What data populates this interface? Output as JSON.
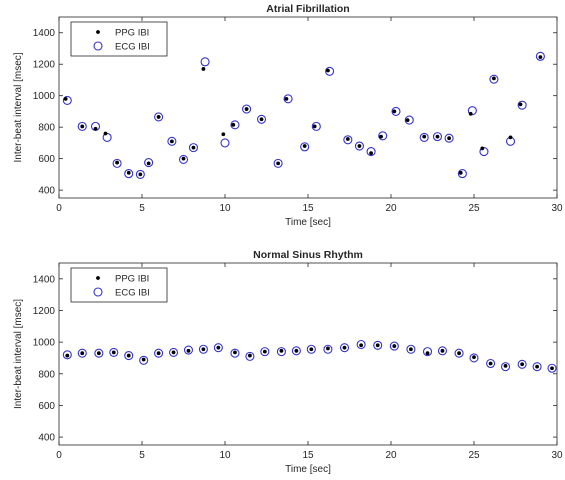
{
  "chart_data": [
    {
      "type": "scatter",
      "title": "Atrial Fibrillation",
      "xlabel": "Time [sec]",
      "ylabel": "Inter-beat interval [msec]",
      "xlim": [
        0,
        30
      ],
      "ylim": [
        350,
        1500
      ],
      "xticks": [
        "0",
        "5",
        "10",
        "15",
        "20",
        "25",
        "30"
      ],
      "yticks": [
        "400",
        "600",
        "800",
        "1000",
        "1200",
        "1400"
      ],
      "xtick_values": [
        0,
        5,
        10,
        15,
        20,
        25,
        30
      ],
      "ytick_values": [
        400,
        600,
        800,
        1000,
        1200,
        1400
      ],
      "legend": {
        "position": "top-left",
        "entries": [
          "PPG IBI",
          "ECG IBI"
        ]
      },
      "grid": false,
      "series": [
        {
          "name": "PPG IBI",
          "marker": "dot",
          "color": "#000000",
          "points": [
            [
              0.4,
              980
            ],
            [
              1.4,
              805
            ],
            [
              2.2,
              790
            ],
            [
              2.8,
              760
            ],
            [
              3.5,
              575
            ],
            [
              4.2,
              510
            ],
            [
              4.9,
              500
            ],
            [
              5.4,
              570
            ],
            [
              6.0,
              865
            ],
            [
              6.8,
              710
            ],
            [
              7.5,
              600
            ],
            [
              8.1,
              670
            ],
            [
              8.7,
              1170
            ],
            [
              9.9,
              755
            ],
            [
              10.5,
              815
            ],
            [
              11.3,
              915
            ],
            [
              12.2,
              850
            ],
            [
              13.2,
              570
            ],
            [
              13.7,
              980
            ],
            [
              14.8,
              680
            ],
            [
              15.4,
              805
            ],
            [
              16.2,
              1160
            ],
            [
              17.4,
              725
            ],
            [
              18.1,
              680
            ],
            [
              18.8,
              635
            ],
            [
              19.4,
              740
            ],
            [
              20.2,
              900
            ],
            [
              21.0,
              845
            ],
            [
              22.0,
              740
            ],
            [
              22.8,
              740
            ],
            [
              23.5,
              730
            ],
            [
              24.2,
              510
            ],
            [
              24.8,
              885
            ],
            [
              25.5,
              665
            ],
            [
              26.2,
              1110
            ],
            [
              27.2,
              735
            ],
            [
              27.8,
              945
            ],
            [
              29.0,
              1245
            ]
          ]
        },
        {
          "name": "ECG IBI",
          "marker": "open-circle",
          "color": "#3333cc",
          "points": [
            [
              0.5,
              970
            ],
            [
              1.4,
              805
            ],
            [
              2.2,
              805
            ],
            [
              2.9,
              735
            ],
            [
              3.5,
              570
            ],
            [
              4.2,
              505
            ],
            [
              4.9,
              500
            ],
            [
              5.4,
              575
            ],
            [
              6.0,
              865
            ],
            [
              6.8,
              710
            ],
            [
              7.5,
              595
            ],
            [
              8.1,
              670
            ],
            [
              8.8,
              1215
            ],
            [
              10.0,
              700
            ],
            [
              10.6,
              815
            ],
            [
              11.3,
              915
            ],
            [
              12.2,
              850
            ],
            [
              13.2,
              570
            ],
            [
              13.8,
              980
            ],
            [
              14.8,
              675
            ],
            [
              15.5,
              805
            ],
            [
              16.3,
              1155
            ],
            [
              17.4,
              720
            ],
            [
              18.1,
              680
            ],
            [
              18.8,
              645
            ],
            [
              19.5,
              745
            ],
            [
              20.3,
              900
            ],
            [
              21.1,
              845
            ],
            [
              22.0,
              735
            ],
            [
              22.8,
              740
            ],
            [
              23.5,
              730
            ],
            [
              24.3,
              505
            ],
            [
              24.9,
              905
            ],
            [
              25.6,
              645
            ],
            [
              26.2,
              1105
            ],
            [
              27.2,
              710
            ],
            [
              27.9,
              940
            ],
            [
              29.0,
              1250
            ]
          ]
        }
      ]
    },
    {
      "type": "scatter",
      "title": "Normal Sinus Rhythm",
      "xlabel": "Time [sec]",
      "ylabel": "Inter-beat interval [msec]",
      "xlim": [
        0,
        30
      ],
      "ylim": [
        350,
        1500
      ],
      "xticks": [
        "0",
        "5",
        "10",
        "15",
        "20",
        "25",
        "30"
      ],
      "yticks": [
        "400",
        "600",
        "800",
        "1000",
        "1200",
        "1400"
      ],
      "xtick_values": [
        0,
        5,
        10,
        15,
        20,
        25,
        30
      ],
      "ytick_values": [
        400,
        600,
        800,
        1000,
        1200,
        1400
      ],
      "legend": {
        "position": "top-left",
        "entries": [
          "PPG IBI",
          "ECG IBI"
        ]
      },
      "grid": false,
      "series": [
        {
          "name": "PPG IBI",
          "marker": "dot",
          "color": "#000000",
          "points": [
            [
              0.5,
              915
            ],
            [
              1.4,
              930
            ],
            [
              2.4,
              930
            ],
            [
              3.3,
              935
            ],
            [
              4.2,
              915
            ],
            [
              5.1,
              890
            ],
            [
              6.0,
              930
            ],
            [
              6.9,
              935
            ],
            [
              7.8,
              945
            ],
            [
              8.7,
              955
            ],
            [
              9.6,
              965
            ],
            [
              10.6,
              935
            ],
            [
              11.5,
              915
            ],
            [
              12.4,
              940
            ],
            [
              13.4,
              945
            ],
            [
              14.3,
              945
            ],
            [
              15.2,
              955
            ],
            [
              16.2,
              960
            ],
            [
              17.2,
              965
            ],
            [
              18.2,
              980
            ],
            [
              19.2,
              980
            ],
            [
              20.2,
              975
            ],
            [
              21.2,
              955
            ],
            [
              22.2,
              930
            ],
            [
              23.1,
              945
            ],
            [
              24.1,
              930
            ],
            [
              25.0,
              905
            ],
            [
              26.0,
              865
            ],
            [
              26.9,
              850
            ],
            [
              27.9,
              860
            ],
            [
              28.8,
              845
            ],
            [
              29.7,
              835
            ]
          ]
        },
        {
          "name": "ECG IBI",
          "marker": "open-circle",
          "color": "#3333cc",
          "points": [
            [
              0.5,
              920
            ],
            [
              1.4,
              930
            ],
            [
              2.4,
              930
            ],
            [
              3.3,
              935
            ],
            [
              4.2,
              915
            ],
            [
              5.1,
              885
            ],
            [
              6.0,
              930
            ],
            [
              6.9,
              935
            ],
            [
              7.8,
              950
            ],
            [
              8.7,
              955
            ],
            [
              9.6,
              965
            ],
            [
              10.6,
              930
            ],
            [
              11.5,
              910
            ],
            [
              12.4,
              940
            ],
            [
              13.4,
              940
            ],
            [
              14.3,
              945
            ],
            [
              15.2,
              955
            ],
            [
              16.2,
              955
            ],
            [
              17.2,
              965
            ],
            [
              18.2,
              985
            ],
            [
              19.2,
              980
            ],
            [
              20.2,
              975
            ],
            [
              21.2,
              955
            ],
            [
              22.2,
              940
            ],
            [
              23.1,
              945
            ],
            [
              24.1,
              930
            ],
            [
              25.0,
              900
            ],
            [
              26.0,
              865
            ],
            [
              26.9,
              845
            ],
            [
              27.9,
              860
            ],
            [
              28.8,
              845
            ],
            [
              29.7,
              835
            ]
          ]
        }
      ]
    }
  ]
}
